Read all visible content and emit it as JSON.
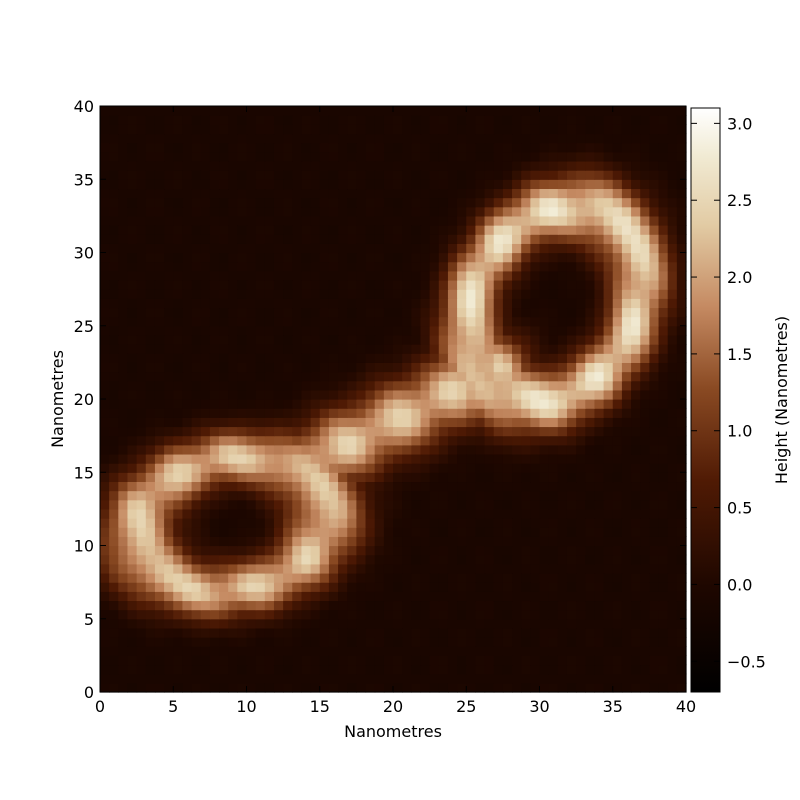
{
  "chart_data": {
    "type": "heatmap",
    "title": "",
    "xlabel": "Nanometres",
    "ylabel": "Nanometres",
    "xlim": [
      0,
      40
    ],
    "ylim": [
      0,
      40
    ],
    "x_ticks": [
      0,
      5,
      10,
      15,
      20,
      25,
      30,
      35,
      40
    ],
    "y_ticks": [
      0,
      5,
      10,
      15,
      20,
      25,
      30,
      35,
      40
    ],
    "grid": false,
    "colormap": "copper-like (black → brown → cream → white)",
    "colorbar": {
      "label": "Height (Nanometres)",
      "range": [
        -0.7,
        3.1
      ],
      "ticks": [
        -0.5,
        0.0,
        0.5,
        1.0,
        1.5,
        2.0,
        2.5,
        3.0
      ],
      "tick_labels": [
        "−0.5",
        "0.0",
        "0.5",
        "1.0",
        "1.5",
        "2.0",
        "2.5",
        "3.0"
      ]
    },
    "features": [
      {
        "name": "lower-left ring",
        "center": [
          9,
          11.5
        ],
        "rx": 6.5,
        "ry": 4.5,
        "angle_deg": 10,
        "peak_height": 2.6
      },
      {
        "name": "upper-right ring",
        "center": [
          31,
          26.5
        ],
        "rx": 5.5,
        "ry": 7.0,
        "angle_deg": -30,
        "peak_height": 2.9
      },
      {
        "name": "connecting strand",
        "from": [
          15,
          16
        ],
        "to": [
          27,
          22
        ],
        "peak_height": 2.6
      }
    ],
    "background_height": -0.1
  }
}
